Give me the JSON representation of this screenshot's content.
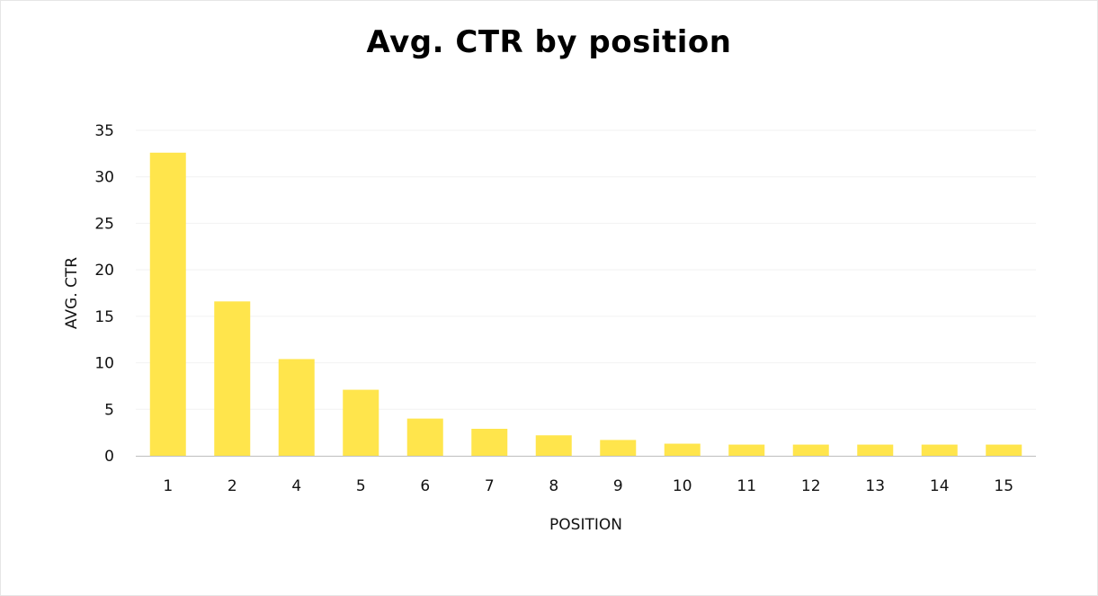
{
  "chart_data": {
    "type": "bar",
    "title": "Avg. CTR by position",
    "xlabel": "POSITION",
    "ylabel": "AVG. CTR",
    "categories": [
      "1",
      "2",
      "4",
      "5",
      "6",
      "7",
      "8",
      "9",
      "10",
      "11",
      "12",
      "13",
      "14",
      "15"
    ],
    "values": [
      32.6,
      16.6,
      10.4,
      7.1,
      4.0,
      2.9,
      2.2,
      1.7,
      1.3,
      1.2,
      1.2,
      1.2,
      1.2,
      1.2
    ],
    "ylim": [
      0,
      35
    ],
    "yticks": [
      0,
      5,
      10,
      15,
      20,
      25,
      30,
      35
    ],
    "grid": true,
    "bar_color": "#ffe54c",
    "grid_color": "#f2f2f2",
    "axis_color": "#bfbfbf"
  }
}
